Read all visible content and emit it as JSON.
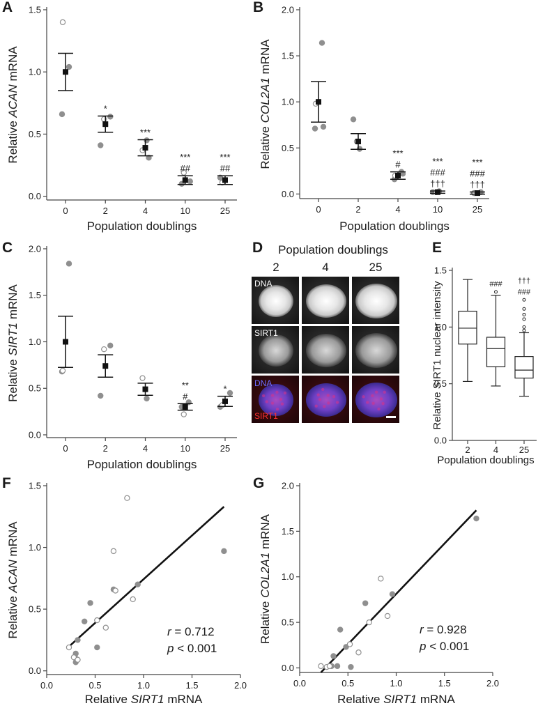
{
  "colors": {
    "filled_point": "#8f8f8f",
    "open_point": "#8f8f8f",
    "mean": "#111111",
    "line": "#111111",
    "dna": "#4a4ad0",
    "sirt1": "#d01818"
  },
  "chart_data": [
    {
      "panel": "A",
      "type": "scatter",
      "xlabel": "Population doublings",
      "ylabel_pre": "Relative ",
      "ylabel_it": "ACAN",
      "ylabel_post": " mRNA",
      "categories": [
        "0",
        "2",
        "4",
        "10",
        "25"
      ],
      "ylim": [
        -0.03,
        1.5
      ],
      "yticks": [
        0.0,
        0.5,
        1.0,
        1.5
      ],
      "filled": [
        [
          0,
          1.04
        ],
        [
          0,
          0.66
        ],
        [
          1,
          0.64
        ],
        [
          1,
          0.41
        ],
        [
          2,
          0.45
        ],
        [
          2,
          0.31
        ],
        [
          3,
          0.1
        ],
        [
          3,
          0.12
        ],
        [
          4,
          0.15
        ]
      ],
      "open": [
        [
          0,
          1.4
        ],
        [
          1,
          0.62
        ],
        [
          2,
          0.37
        ],
        [
          3,
          0.19
        ],
        [
          4,
          0.11
        ]
      ],
      "mean": [
        1.0,
        0.58,
        0.39,
        0.13,
        0.13
      ],
      "err": [
        0.15,
        0.065,
        0.065,
        0.035,
        0.035
      ],
      "sig": [
        [],
        [
          "*"
        ],
        [
          "***"
        ],
        [
          "***",
          "##"
        ],
        [
          "***",
          "##"
        ]
      ]
    },
    {
      "panel": "B",
      "type": "scatter",
      "xlabel": "Population doublings",
      "ylabel_pre": "Relative ",
      "ylabel_it": "COL2A1",
      "ylabel_post": " mRNA",
      "categories": [
        "0",
        "2",
        "4",
        "10",
        "25"
      ],
      "ylim": [
        -0.05,
        2.0
      ],
      "yticks": [
        0.0,
        0.5,
        1.0,
        1.5,
        2.0
      ],
      "filled": [
        [
          0,
          1.64
        ],
        [
          0,
          0.71
        ],
        [
          0,
          0.73
        ],
        [
          1,
          0.81
        ],
        [
          1,
          0.49
        ],
        [
          2,
          0.24
        ],
        [
          2,
          0.16
        ],
        [
          2,
          0.22
        ],
        [
          3,
          0.02
        ],
        [
          3,
          0.03
        ],
        [
          4,
          0.02
        ],
        [
          4,
          0.01
        ]
      ],
      "open": [
        [
          0,
          0.98
        ],
        [
          1,
          0.57
        ],
        [
          2,
          0.2
        ],
        [
          3,
          0.02
        ],
        [
          4,
          0.01
        ]
      ],
      "mean": [
        1.0,
        0.57,
        0.2,
        0.02,
        0.01
      ],
      "err": [
        0.22,
        0.085,
        0.04,
        0.012,
        0.012
      ],
      "sig": [
        [],
        [],
        [
          "***",
          "#"
        ],
        [
          "***",
          "###",
          "†††"
        ],
        [
          "***",
          "###",
          "†††"
        ]
      ]
    },
    {
      "panel": "C",
      "type": "scatter",
      "xlabel": "Population doublings",
      "ylabel_pre": "Relative ",
      "ylabel_it": "SIRT1",
      "ylabel_post": " mRNA",
      "categories": [
        "0",
        "2",
        "4",
        "10",
        "25"
      ],
      "ylim": [
        -0.03,
        2.0
      ],
      "yticks": [
        0.0,
        0.5,
        1.0,
        1.5,
        2.0
      ],
      "filled": [
        [
          0,
          1.84
        ],
        [
          0,
          0.68
        ],
        [
          1,
          0.96
        ],
        [
          1,
          0.42
        ],
        [
          2,
          0.39
        ],
        [
          3,
          0.35
        ],
        [
          3,
          0.3
        ],
        [
          4,
          0.45
        ],
        [
          4,
          0.3
        ]
      ],
      "open": [
        [
          0,
          0.69
        ],
        [
          1,
          0.92
        ],
        [
          2,
          0.61
        ],
        [
          3,
          0.22
        ],
        [
          4,
          0.32
        ]
      ],
      "mean": [
        1.0,
        0.74,
        0.49,
        0.3,
        0.36
      ],
      "err": [
        0.275,
        0.12,
        0.065,
        0.035,
        0.055
      ],
      "sig": [
        [],
        [],
        [],
        [
          "**",
          "#"
        ],
        [
          "*"
        ]
      ]
    },
    {
      "panel": "E",
      "type": "box",
      "xlabel": "Population doublings",
      "ylabel": "Relative SIRT1 nuclear intensity",
      "categories": [
        "2",
        "4",
        "25"
      ],
      "ylim": [
        0.0,
        1.5
      ],
      "yticks": [
        0.0,
        0.5,
        1.0,
        1.5
      ],
      "boxes": [
        {
          "min": 0.52,
          "q1": 0.85,
          "median": 0.99,
          "q3": 1.14,
          "max": 1.42,
          "outliers": []
        },
        {
          "min": 0.48,
          "q1": 0.65,
          "median": 0.81,
          "q3": 0.91,
          "max": 1.28,
          "outliers": [
            1.31
          ]
        },
        {
          "min": 0.39,
          "q1": 0.55,
          "median": 0.62,
          "q3": 0.74,
          "max": 0.95,
          "outliers": [
            0.97,
            1.0,
            1.07,
            1.11,
            1.16,
            1.24
          ]
        }
      ],
      "sig": [
        [],
        [
          "###"
        ],
        [
          "†††",
          "###"
        ]
      ]
    },
    {
      "panel": "F",
      "type": "scatter",
      "xlabel_pre": "Relative ",
      "xlabel_it": "SIRT1",
      "xlabel_post": " mRNA",
      "ylabel_pre": "Relative ",
      "ylabel_it": "ACAN",
      "ylabel_post": " mRNA",
      "xlim": [
        0.0,
        2.0
      ],
      "xticks": [
        0.0,
        0.5,
        1.0,
        1.5,
        2.0
      ],
      "ylim": [
        -0.03,
        1.5
      ],
      "yticks": [
        0.0,
        0.5,
        1.0,
        1.5
      ],
      "filled": [
        [
          1.83,
          0.97
        ],
        [
          0.94,
          0.7
        ],
        [
          0.69,
          0.66
        ],
        [
          0.45,
          0.55
        ],
        [
          0.39,
          0.4
        ],
        [
          0.32,
          0.25
        ],
        [
          0.3,
          0.14
        ],
        [
          0.3,
          0.1
        ],
        [
          0.3,
          0.07
        ],
        [
          0.52,
          0.19
        ]
      ],
      "open": [
        [
          0.83,
          1.4
        ],
        [
          0.71,
          0.65
        ],
        [
          0.69,
          0.97
        ],
        [
          0.89,
          0.58
        ],
        [
          0.52,
          0.41
        ],
        [
          0.61,
          0.35
        ],
        [
          0.23,
          0.19
        ],
        [
          0.28,
          0.11
        ],
        [
          0.32,
          0.09
        ]
      ],
      "fit": [
        [
          0.22,
          0.19
        ],
        [
          1.83,
          1.33
        ]
      ],
      "stat_r_label": "r",
      "stat_r_value": " = 0.712",
      "stat_p_label": "p",
      "stat_p_value": " < 0.001"
    },
    {
      "panel": "G",
      "type": "scatter",
      "xlabel_pre": "Relative ",
      "xlabel_it": "SIRT1",
      "xlabel_post": " mRNA",
      "ylabel_pre": "Relative ",
      "ylabel_it": "COL2A1",
      "ylabel_post": " mRNA",
      "xlim": [
        0.0,
        2.0
      ],
      "xticks": [
        0.0,
        0.5,
        1.0,
        1.5,
        2.0
      ],
      "ylim": [
        -0.05,
        2.0
      ],
      "yticks": [
        0.0,
        0.5,
        1.0,
        1.5,
        2.0
      ],
      "filled": [
        [
          1.83,
          1.64
        ],
        [
          0.96,
          0.81
        ],
        [
          0.68,
          0.71
        ],
        [
          0.42,
          0.42
        ],
        [
          0.35,
          0.13
        ],
        [
          0.33,
          0.02
        ],
        [
          0.39,
          0.02
        ],
        [
          0.53,
          0.01
        ],
        [
          0.48,
          0.23
        ]
      ],
      "open": [
        [
          0.84,
          0.98
        ],
        [
          0.91,
          0.57
        ],
        [
          0.72,
          0.5
        ],
        [
          0.52,
          0.26
        ],
        [
          0.61,
          0.17
        ],
        [
          0.22,
          0.02
        ],
        [
          0.28,
          0.01
        ],
        [
          0.31,
          0.02
        ]
      ],
      "fit": [
        [
          0.22,
          -0.05
        ],
        [
          1.83,
          1.73
        ]
      ],
      "stat_r_label": "r",
      "stat_r_value": " = 0.928",
      "stat_p_label": "p",
      "stat_p_value": " < 0.001"
    }
  ],
  "micrograph": {
    "title": "Population doublings",
    "columns": [
      "2",
      "4",
      "25"
    ],
    "rows": [
      {
        "label": "DNA"
      },
      {
        "label": "SIRT1"
      },
      {
        "label_dna": "DNA",
        "label_sirt1": "SIRT1"
      }
    ]
  },
  "panel_labels": [
    "A",
    "B",
    "C",
    "D",
    "E",
    "F",
    "G"
  ]
}
